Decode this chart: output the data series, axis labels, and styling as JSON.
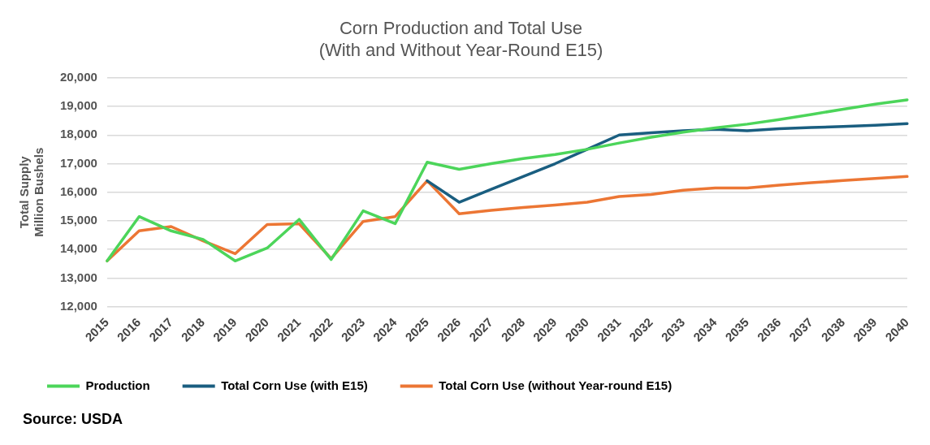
{
  "chart_data": {
    "type": "line",
    "title": "Corn Production and Total Use\n(With and Without Year-Round E15)",
    "ylabel": "Total Supply\nMillion Bushels",
    "categories": [
      "2015",
      "2016",
      "2017",
      "2018",
      "2019",
      "2020",
      "2021",
      "2022",
      "2023",
      "2024",
      "2025",
      "2026",
      "2027",
      "2028",
      "2029",
      "2030",
      "2031",
      "2032",
      "2033",
      "2034",
      "2035",
      "2036",
      "2037",
      "2038",
      "2039",
      "2040"
    ],
    "series": [
      {
        "name": "Production",
        "color": "#4cd55a",
        "values": [
          13600,
          15150,
          14650,
          14350,
          13600,
          14050,
          15050,
          13650,
          15350,
          14900,
          17050,
          16800,
          17000,
          17180,
          17320,
          17500,
          17720,
          17920,
          18100,
          18250,
          18380,
          18540,
          18720,
          18900,
          19080,
          19230
        ]
      },
      {
        "name": "Total Corn Use (with E15)",
        "color": "#1a5e80",
        "values": [
          null,
          null,
          null,
          null,
          null,
          null,
          null,
          null,
          null,
          null,
          16400,
          15650,
          16100,
          16550,
          17000,
          17500,
          18000,
          18080,
          18150,
          18200,
          18150,
          18220,
          18260,
          18300,
          18340,
          18400
        ]
      },
      {
        "name": "Total Corn Use (without Year-round E15)",
        "color": "#ec7634",
        "values": [
          13600,
          14650,
          14800,
          14300,
          13850,
          14870,
          14900,
          13680,
          14980,
          15150,
          16400,
          15250,
          15370,
          15470,
          15550,
          15650,
          15850,
          15920,
          16070,
          16150,
          16150,
          16250,
          16330,
          16410,
          16480,
          16550
        ]
      }
    ],
    "ylim": [
      12000,
      20000
    ],
    "yticks": [
      {
        "value": 12000,
        "label": "12,000"
      },
      {
        "value": 13000,
        "label": "13,000"
      },
      {
        "value": 14000,
        "label": "14,000"
      },
      {
        "value": 15000,
        "label": "15,000"
      },
      {
        "value": 16000,
        "label": "16,000"
      },
      {
        "value": 17000,
        "label": "17,000"
      },
      {
        "value": 18000,
        "label": "18,000"
      },
      {
        "value": 19000,
        "label": "19,000"
      },
      {
        "value": 20000,
        "label": "20,000"
      }
    ],
    "grid": "y",
    "legend": "bottom",
    "marker": "none",
    "line_style": "solid",
    "annotations": [
      "Source: USDA"
    ]
  }
}
